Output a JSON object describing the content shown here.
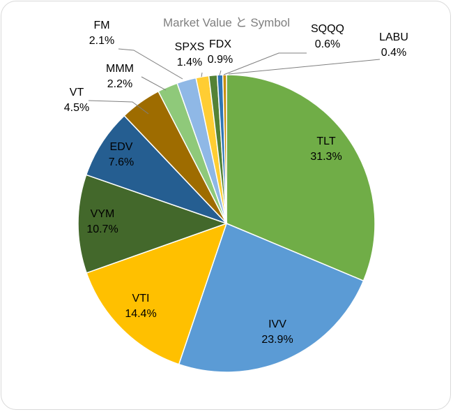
{
  "chart_data": {
    "type": "pie",
    "title": "Market Value と Symbol",
    "legend": "none",
    "slices": [
      {
        "label": "TLT",
        "value": 31.3,
        "display": "31.3%",
        "color": "#70ad47"
      },
      {
        "label": "IVV",
        "value": 23.9,
        "display": "23.9%",
        "color": "#5b9bd5"
      },
      {
        "label": "VTI",
        "value": 14.4,
        "display": "14.4%",
        "color": "#ffc000"
      },
      {
        "label": "VYM",
        "value": 10.7,
        "display": "10.7%",
        "color": "#43682b"
      },
      {
        "label": "EDV",
        "value": 7.6,
        "display": "7.6%",
        "color": "#255e91"
      },
      {
        "label": "VT",
        "value": 4.5,
        "display": "4.5%",
        "color": "#9e6c00"
      },
      {
        "label": "MMM",
        "value": 2.2,
        "display": "2.2%",
        "color": "#8fc97a"
      },
      {
        "label": "FM",
        "value": 2.1,
        "display": "2.1%",
        "color": "#8fb8e6"
      },
      {
        "label": "SPXS",
        "value": 1.4,
        "display": "1.4%",
        "color": "#ffcd33"
      },
      {
        "label": "FDX",
        "value": 0.9,
        "display": "0.9%",
        "color": "#548235"
      },
      {
        "label": "SQQQ",
        "value": 0.6,
        "display": "0.6%",
        "color": "#2f75b5"
      },
      {
        "label": "LABU",
        "value": 0.4,
        "display": "0.4%",
        "color": "#c9900c"
      }
    ]
  }
}
